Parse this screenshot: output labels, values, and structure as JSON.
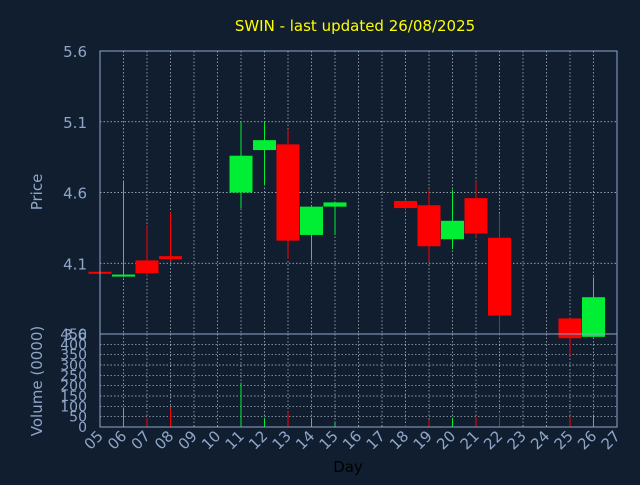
{
  "chart_data": {
    "title": "SWIN - last updated 26/08/2025",
    "xlabel": "Day",
    "colors": {
      "background": "#111e2f",
      "title": "#ffff00",
      "axis_text": "#8fa6c8",
      "grid": "#c0c8d4",
      "up": "#00ee33",
      "down": "#ff0000"
    },
    "days": [
      "05",
      "06",
      "07",
      "08",
      "09",
      "10",
      "11",
      "12",
      "13",
      "14",
      "15",
      "16",
      "17",
      "18",
      "19",
      "20",
      "21",
      "22",
      "23",
      "24",
      "25",
      "26",
      "27"
    ],
    "price_panel": {
      "type": "candlestick",
      "ylabel": "Price",
      "ylim": [
        3.6,
        5.6
      ],
      "yticks": [
        "5.6",
        "5.1",
        "4.6",
        "4.1",
        "3.6"
      ],
      "ytick_values": [
        5.6,
        5.1,
        4.6,
        4.1,
        3.6
      ],
      "candles": [
        {
          "day": 5.0,
          "open": 4.04,
          "high": 4.04,
          "low": 4.03,
          "close": 4.03
        },
        {
          "day": 6.0,
          "open": 4.01,
          "high": 4.68,
          "low": 4.0,
          "close": 4.02
        },
        {
          "day": 7.0,
          "open": 4.12,
          "high": 4.37,
          "low": 4.01,
          "close": 4.03
        },
        {
          "day": 8.0,
          "open": 4.15,
          "high": 4.46,
          "low": 4.11,
          "close": 4.13
        },
        {
          "day": 11.0,
          "open": 4.6,
          "high": 5.1,
          "low": 4.49,
          "close": 4.86
        },
        {
          "day": 12.0,
          "open": 4.9,
          "high": 5.1,
          "low": 4.65,
          "close": 4.97
        },
        {
          "day": 13.0,
          "open": 4.94,
          "high": 5.05,
          "low": 4.13,
          "close": 4.26
        },
        {
          "day": 14.0,
          "open": 4.3,
          "high": 4.49,
          "low": 4.12,
          "close": 4.5
        },
        {
          "day": 15.0,
          "open": 4.5,
          "high": 4.53,
          "low": 4.3,
          "close": 4.53
        },
        {
          "day": 18.0,
          "open": 4.54,
          "high": 4.55,
          "low": 4.47,
          "close": 4.49
        },
        {
          "day": 19.0,
          "open": 4.51,
          "high": 4.62,
          "low": 4.11,
          "close": 4.22
        },
        {
          "day": 20.0,
          "open": 4.27,
          "high": 4.62,
          "low": 4.2,
          "close": 4.4
        },
        {
          "day": 21.0,
          "open": 4.56,
          "high": 4.68,
          "low": 4.28,
          "close": 4.31
        },
        {
          "day": 22.0,
          "open": 4.28,
          "high": 4.45,
          "low": 3.59,
          "close": 3.73
        },
        {
          "day": 25.0,
          "open": 3.71,
          "high": 3.72,
          "low": 3.45,
          "close": 3.57
        },
        {
          "day": 26.0,
          "open": 3.58,
          "high": 4.0,
          "low": 3.58,
          "close": 3.86
        }
      ]
    },
    "volume_panel": {
      "type": "bar",
      "ylabel": "Volume (0000)",
      "ylim": [
        0,
        450
      ],
      "yticks": [
        "450",
        "400",
        "350",
        "300",
        "250",
        "200",
        "150",
        "100",
        "50",
        "0"
      ],
      "ytick_values": [
        450,
        400,
        350,
        300,
        250,
        200,
        150,
        100,
        50,
        0
      ],
      "bars": [
        {
          "day": 6.0,
          "value": 90,
          "direction": "up"
        },
        {
          "day": 7.0,
          "value": 45,
          "direction": "down"
        },
        {
          "day": 8.0,
          "value": 90,
          "direction": "down"
        },
        {
          "day": 11.0,
          "value": 215,
          "direction": "up"
        },
        {
          "day": 12.0,
          "value": 45,
          "direction": "up"
        },
        {
          "day": 13.0,
          "value": 75,
          "direction": "down"
        },
        {
          "day": 14.0,
          "value": 45,
          "direction": "up"
        },
        {
          "day": 15.0,
          "value": 20,
          "direction": "up"
        },
        {
          "day": 18.0,
          "value": 10,
          "direction": "down"
        },
        {
          "day": 19.0,
          "value": 35,
          "direction": "down"
        },
        {
          "day": 20.0,
          "value": 45,
          "direction": "up"
        },
        {
          "day": 21.0,
          "value": 50,
          "direction": "down"
        },
        {
          "day": 22.0,
          "value": 60,
          "direction": "down"
        },
        {
          "day": 25.0,
          "value": 50,
          "direction": "down"
        },
        {
          "day": 26.0,
          "value": 60,
          "direction": "up"
        }
      ]
    }
  }
}
